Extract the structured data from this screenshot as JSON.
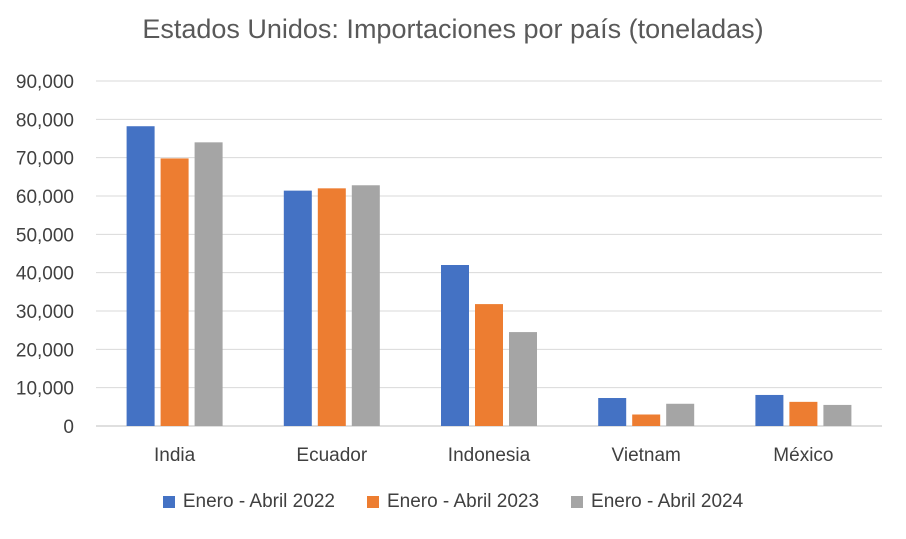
{
  "chart_data": {
    "type": "bar",
    "title": "Estados Unidos: Importaciones por país (toneladas)",
    "xlabel": "",
    "ylabel": "",
    "ylim": [
      0,
      90000
    ],
    "yticks": [
      0,
      10000,
      20000,
      30000,
      40000,
      50000,
      60000,
      70000,
      80000,
      90000
    ],
    "ytick_labels": [
      "0",
      "10,000",
      "20,000",
      "30,000",
      "40,000",
      "50,000",
      "60,000",
      "70,000",
      "80,000",
      "90,000"
    ],
    "grid": true,
    "legend_position": "bottom",
    "categories": [
      "India",
      "Ecuador",
      "Indonesia",
      "Vietnam",
      "México"
    ],
    "series": [
      {
        "name": "Enero - Abril 2022",
        "color": "#4472C4",
        "values": [
          78200,
          61400,
          42000,
          7300,
          8100
        ]
      },
      {
        "name": "Enero - Abril 2023",
        "color": "#ED7D31",
        "values": [
          69800,
          62000,
          31800,
          3000,
          6300
        ]
      },
      {
        "name": "Enero - Abril 2024",
        "color": "#A5A5A5",
        "values": [
          74000,
          62800,
          24500,
          5800,
          5500
        ]
      }
    ]
  }
}
